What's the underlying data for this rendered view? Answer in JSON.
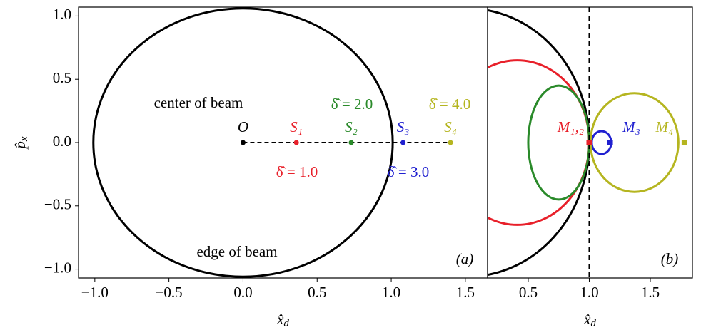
{
  "chart_data": [
    {
      "type": "phase",
      "panel_label": "(a)",
      "x_label": {
        "base": "x̂",
        "sub": "d"
      },
      "y_label": {
        "base": "p̂",
        "sub": "x"
      },
      "xlim": [
        -1.11,
        1.65
      ],
      "ylim": [
        -1.07,
        1.07
      ],
      "xticks": [
        {
          "value": -1,
          "label": "−1.0"
        },
        {
          "value": -0.5,
          "label": "−0.5"
        },
        {
          "value": 0,
          "label": "0.0"
        },
        0.5,
        {
          "value": 1,
          "label": "1.0"
        },
        1.5
      ],
      "yticks": [
        {
          "value": -1,
          "label": "−1.0"
        },
        {
          "value": -0.5,
          "label": "−0.5"
        },
        {
          "value": 0,
          "label": "0.0"
        },
        0.5,
        {
          "value": 1,
          "label": "1.0"
        }
      ],
      "ellipses": [
        {
          "cx": 0,
          "cy": 0,
          "rx": 1.01,
          "ry": 1.06,
          "color": "#000000"
        }
      ],
      "dashed_line": {
        "x": [
          0,
          1.4
        ],
        "y": [
          0,
          0
        ]
      },
      "points": [
        {
          "name": "O",
          "x": 0,
          "y": 0,
          "color": "#000000"
        },
        {
          "name": "S₁",
          "x": 0.36,
          "y": 0,
          "color": "#e8202a"
        },
        {
          "name": "S₂",
          "x": 0.73,
          "y": 0,
          "color": "#2a8a2a"
        },
        {
          "name": "S₃",
          "x": 1.08,
          "y": 0,
          "color": "#2020d0"
        },
        {
          "name": "S₄",
          "x": 1.4,
          "y": 0,
          "color": "#b5b520"
        }
      ],
      "annotations": [
        {
          "text": "center of beam",
          "color": "#000000"
        },
        {
          "text": "edge of beam",
          "color": "#000000"
        },
        {
          "text": "δ̂ = 1.0",
          "color": "#e8202a"
        },
        {
          "text": "δ̂ = 2.0",
          "color": "#2a8a2a"
        },
        {
          "text": "δ̂ = 3.0",
          "color": "#2020d0"
        },
        {
          "text": "δ̂ = 4.0",
          "color": "#b5b520"
        }
      ]
    },
    {
      "type": "phase",
      "panel_label": "(b)",
      "x_label": {
        "base": "x̂",
        "sub": "d"
      },
      "xlim": [
        0.167,
        1.845
      ],
      "ylim": [
        -1.07,
        1.07
      ],
      "xticks": [
        0.5,
        {
          "value": 1,
          "label": "1.0"
        },
        1.5
      ],
      "ellipses": [
        {
          "cx": 0,
          "cy": 0,
          "rx": 1.0,
          "ry": 1.06,
          "color": "#000000"
        },
        {
          "cx": 0.41,
          "cy": 0,
          "rx": 0.59,
          "ry": 0.65,
          "color": "#e8202a"
        },
        {
          "cx": 0.75,
          "cy": 0,
          "rx": 0.25,
          "ry": 0.45,
          "color": "#2a8a2a"
        },
        {
          "cx": 1.1,
          "cy": 0,
          "rx": 0.08,
          "ry": 0.09,
          "color": "#2020d0"
        },
        {
          "cx": 1.37,
          "cy": 0,
          "rx": 0.36,
          "ry": 0.39,
          "color": "#b5b520"
        }
      ],
      "vline": 1.0,
      "points": [
        {
          "name": "M₁,₂",
          "x": 1.0,
          "y": 0,
          "color": "#e8202a"
        },
        {
          "name": "M₃",
          "x": 1.17,
          "y": 0,
          "color": "#2020d0"
        },
        {
          "name": "M₄",
          "x": 1.78,
          "y": 0,
          "color": "#b5b520"
        }
      ]
    }
  ]
}
